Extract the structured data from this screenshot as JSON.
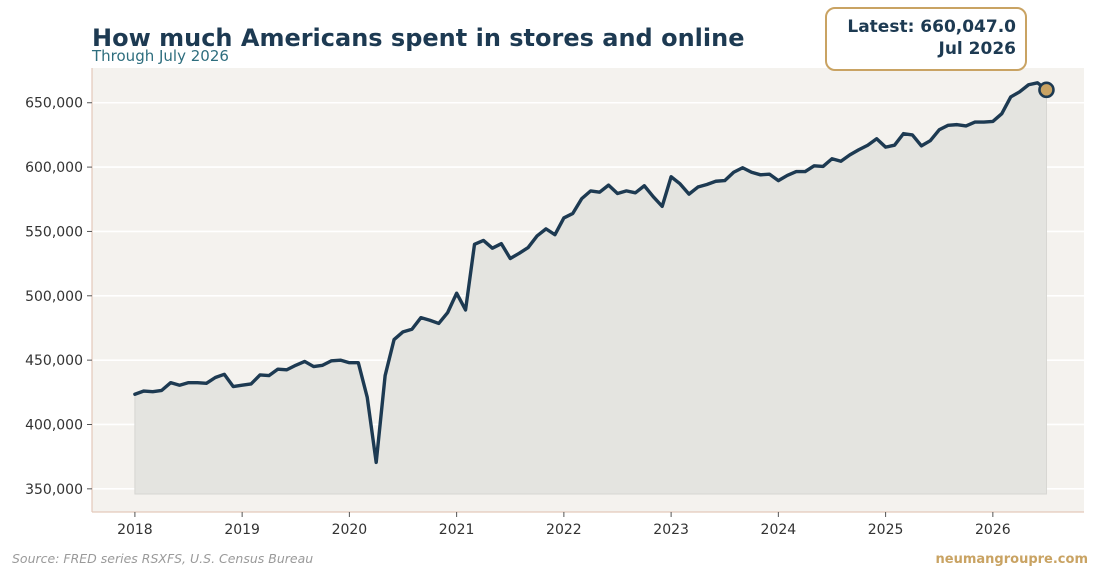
{
  "header": {
    "title": "How much Americans spent in stores and online",
    "subtitle": "Through July 2026"
  },
  "callout": {
    "line1": "Latest: 660,047.0",
    "line2": "Jul 2026"
  },
  "footer": {
    "source": "Source: FRED series RSXFS, U.S. Census Bureau",
    "brand": "neumangroupre.com"
  },
  "colors": {
    "line": "#1d3a52",
    "area_fill": "#e4e4e0",
    "plot_background": "#f4f2ee",
    "gridline": "#ffffff",
    "marker_fill": "#c9a363",
    "callout_border": "#c9a363"
  },
  "chart_data": {
    "type": "area",
    "title": "How much Americans spent in stores and online",
    "subtitle": "Through July 2026",
    "xlabel": "",
    "ylabel": "",
    "xlim": [
      2017.6,
      2026.85
    ],
    "ylim": [
      332000,
      677000
    ],
    "x_ticks": [
      2018,
      2019,
      2020,
      2021,
      2022,
      2023,
      2024,
      2025,
      2026
    ],
    "x_tick_labels": [
      "2018",
      "2019",
      "2020",
      "2021",
      "2022",
      "2023",
      "2024",
      "2025",
      "2026"
    ],
    "y_ticks": [
      350000,
      400000,
      450000,
      500000,
      550000,
      600000,
      650000
    ],
    "y_tick_labels": [
      "350,000",
      "400,000",
      "450,000",
      "500,000",
      "550,000",
      "600,000",
      "650,000"
    ],
    "grid": true,
    "area_baseline": 346000,
    "series": [
      {
        "start": "2018-01",
        "frequency": "monthly",
        "values": [
          423500,
          426000,
          425500,
          426500,
          432500,
          430500,
          432500,
          432500,
          432000,
          436500,
          439000,
          429500,
          430500,
          431500,
          438500,
          438000,
          443000,
          442500,
          446000,
          449000,
          445000,
          446000,
          449500,
          450000,
          448000,
          448000,
          421000,
          370500,
          438000,
          466000,
          472000,
          474000,
          483000,
          481000,
          478500,
          487000,
          502000,
          489000,
          540000,
          543000,
          537000,
          540500,
          529000,
          533000,
          537500,
          546500,
          552000,
          547500,
          560500,
          564000,
          575500,
          581500,
          580500,
          586000,
          579500,
          581500,
          580000,
          585500,
          577000,
          569500,
          592500,
          587000,
          579000,
          584500,
          586500,
          589000,
          589500,
          596000,
          599500,
          596000,
          594000,
          594500,
          589500,
          593500,
          596500,
          596500,
          601000,
          600500,
          606500,
          604500,
          609500,
          613500,
          617000,
          622000,
          615500,
          617000,
          626000,
          625000,
          616500,
          620500,
          629000,
          632500,
          633000,
          632000,
          635000,
          635000,
          635500,
          641500,
          654500,
          658500,
          664000,
          665500,
          660047
        ]
      }
    ]
  }
}
